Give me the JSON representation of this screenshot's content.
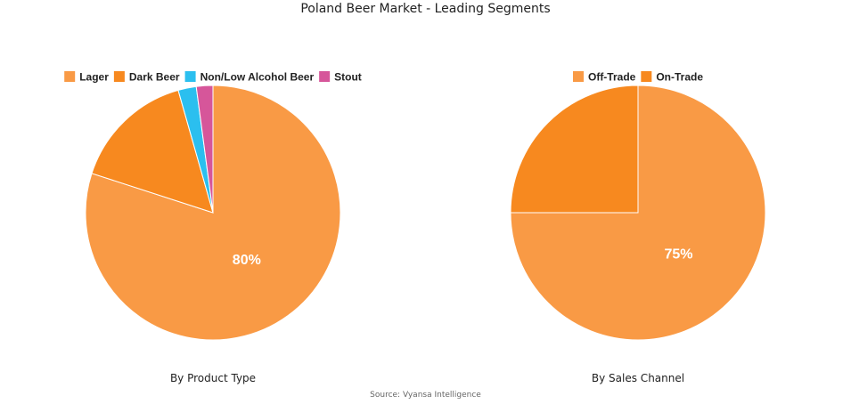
{
  "title": "Poland Beer Market - Leading Segments",
  "source": "Source: Vyansa Intelligence",
  "chart_data": [
    {
      "type": "pie",
      "subtitle": "By Product Type",
      "legend_position": "top",
      "categories": [
        "Lager",
        "Dark Beer",
        "Non/Low Alcohol Beer",
        "Stout"
      ],
      "values": [
        80,
        15.6,
        2.3,
        2.1
      ],
      "colors": [
        "#F99A45",
        "#F7891F",
        "#2BBFEF",
        "#D6569A"
      ],
      "data_labels": [
        "80%",
        "",
        "",
        ""
      ]
    },
    {
      "type": "pie",
      "subtitle": "By Sales Channel",
      "legend_position": "top",
      "categories": [
        "Off-Trade",
        "On-Trade"
      ],
      "values": [
        75,
        25
      ],
      "colors": [
        "#F99A45",
        "#F7891F"
      ],
      "data_labels": [
        "75%",
        ""
      ]
    }
  ]
}
